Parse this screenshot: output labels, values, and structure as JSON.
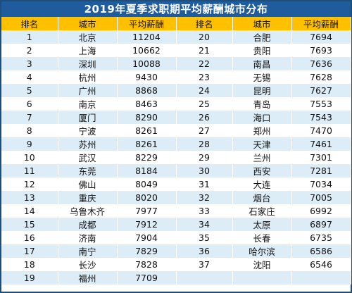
{
  "title": "2019年夏季求职期平均薪酬城市分布",
  "headers": [
    "排名",
    "城市",
    "平均薪酬",
    "排名",
    "城市",
    "平均薪酬"
  ],
  "rows": [
    {
      "l": [
        "1",
        "北京",
        "11204"
      ],
      "r": [
        "20",
        "合肥",
        "7694"
      ]
    },
    {
      "l": [
        "2",
        "上海",
        "10662"
      ],
      "r": [
        "21",
        "贵阳",
        "7693"
      ]
    },
    {
      "l": [
        "3",
        "深圳",
        "10088"
      ],
      "r": [
        "22",
        "南昌",
        "7636"
      ]
    },
    {
      "l": [
        "4",
        "杭州",
        "9430"
      ],
      "r": [
        "23",
        "无锡",
        "7628"
      ]
    },
    {
      "l": [
        "5",
        "广州",
        "8868"
      ],
      "r": [
        "24",
        "昆明",
        "7627"
      ]
    },
    {
      "l": [
        "6",
        "南京",
        "8463"
      ],
      "r": [
        "25",
        "青岛",
        "7553"
      ]
    },
    {
      "l": [
        "7",
        "厦门",
        "8290"
      ],
      "r": [
        "26",
        "海口",
        "7543"
      ]
    },
    {
      "l": [
        "8",
        "宁波",
        "8261"
      ],
      "r": [
        "27",
        "郑州",
        "7470"
      ]
    },
    {
      "l": [
        "9",
        "苏州",
        "8261"
      ],
      "r": [
        "28",
        "天津",
        "7461"
      ]
    },
    {
      "l": [
        "10",
        "武汉",
        "8229"
      ],
      "r": [
        "29",
        "兰州",
        "7301"
      ]
    },
    {
      "l": [
        "11",
        "东莞",
        "8184"
      ],
      "r": [
        "30",
        "西安",
        "7281"
      ]
    },
    {
      "l": [
        "12",
        "佛山",
        "8049"
      ],
      "r": [
        "31",
        "大连",
        "7034"
      ]
    },
    {
      "l": [
        "13",
        "重庆",
        "8020"
      ],
      "r": [
        "32",
        "烟台",
        "7005"
      ]
    },
    {
      "l": [
        "14",
        "乌鲁木齐",
        "7977"
      ],
      "r": [
        "33",
        "石家庄",
        "6992"
      ]
    },
    {
      "l": [
        "15",
        "成都",
        "7912"
      ],
      "r": [
        "34",
        "太原",
        "6897"
      ]
    },
    {
      "l": [
        "16",
        "济南",
        "7904"
      ],
      "r": [
        "35",
        "长春",
        "6735"
      ]
    },
    {
      "l": [
        "17",
        "南宁",
        "7829"
      ],
      "r": [
        "36",
        "哈尔滨",
        "6586"
      ]
    },
    {
      "l": [
        "18",
        "长沙",
        "7828"
      ],
      "r": [
        "37",
        "沈阳",
        "6546"
      ]
    },
    {
      "l": [
        "19",
        "福州",
        "7709"
      ],
      "r": [
        "",
        "",
        ""
      ]
    }
  ],
  "colors": {
    "title_bg": "#1f5c9e",
    "header_bg": "#ffc000",
    "odd_row_bg": "#dcedf8",
    "even_row_bg": "#ffffff"
  }
}
